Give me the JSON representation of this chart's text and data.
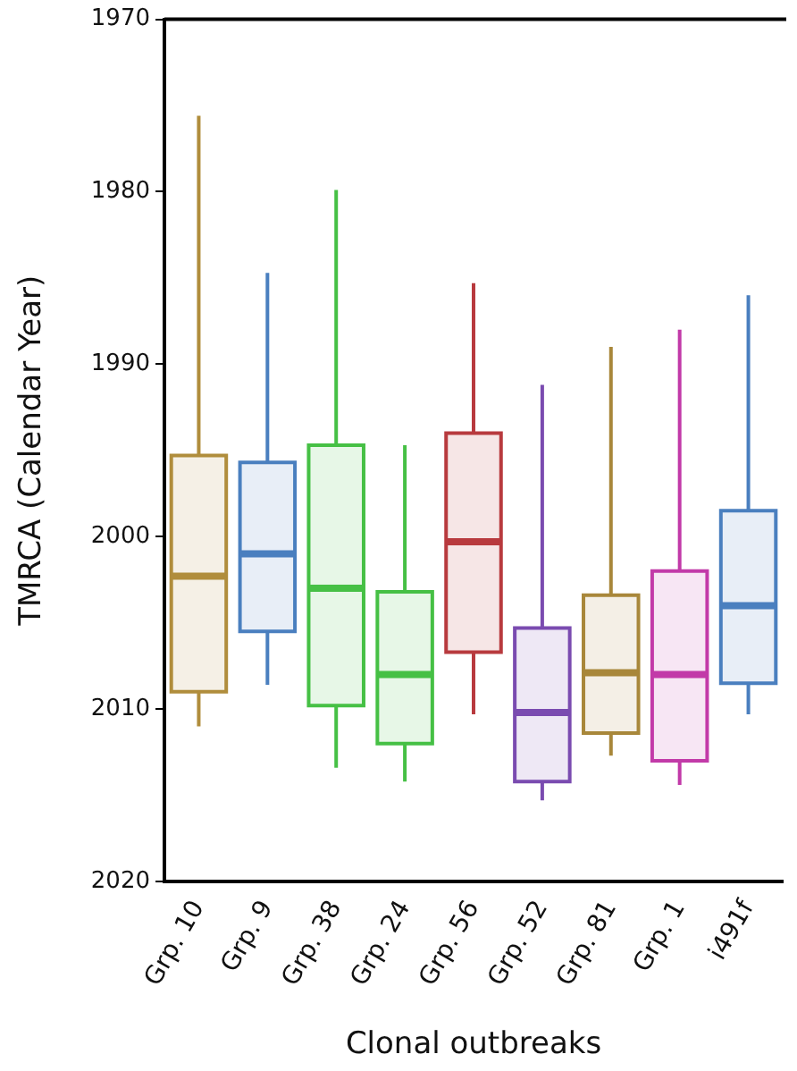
{
  "chart_data": {
    "type": "box",
    "xlabel": "Clonal outbreaks",
    "ylabel": "TMRCA (Calendar Year)",
    "categories": [
      "Grp. 10",
      "Grp. 9",
      "Grp. 38",
      "Grp. 24",
      "Grp. 56",
      "Grp. 52",
      "Grp. 81",
      "Grp. 1",
      "i491f"
    ],
    "colors": [
      "#b08d3c",
      "#4a7fbf",
      "#46c045",
      "#46c045",
      "#b83a3e",
      "#7a4bb0",
      "#a8873a",
      "#c23aa8",
      "#4a7fbf"
    ],
    "boxes": [
      {
        "low": 2011.0,
        "q1": 2009.0,
        "median": 2002.3,
        "q3": 1995.3,
        "high": 1975.6
      },
      {
        "low": 2008.6,
        "q1": 2005.5,
        "median": 2001.0,
        "q3": 1995.7,
        "high": 1984.7
      },
      {
        "low": 2013.4,
        "q1": 2009.8,
        "median": 2003.0,
        "q3": 1994.7,
        "high": 1979.9
      },
      {
        "low": 2014.2,
        "q1": 2012.0,
        "median": 2008.0,
        "q3": 2003.2,
        "high": 1994.7
      },
      {
        "low": 2010.3,
        "q1": 2006.7,
        "median": 2000.3,
        "q3": 1994.0,
        "high": 1985.3
      },
      {
        "low": 2015.3,
        "q1": 2014.2,
        "median": 2010.2,
        "q3": 2005.3,
        "high": 1991.2
      },
      {
        "low": 2012.7,
        "q1": 2011.4,
        "median": 2007.9,
        "q3": 2003.4,
        "high": 1989.0
      },
      {
        "low": 2014.4,
        "q1": 2013.0,
        "median": 2008.0,
        "q3": 2002.0,
        "high": 1988.0
      },
      {
        "low": 2010.3,
        "q1": 2008.5,
        "median": 2004.0,
        "q3": 1998.5,
        "high": 1986.0
      }
    ],
    "ylim": [
      2020,
      1970
    ],
    "yticks": [
      1970,
      1980,
      1990,
      2000,
      2010,
      2020
    ],
    "grid": false,
    "legend": false
  }
}
